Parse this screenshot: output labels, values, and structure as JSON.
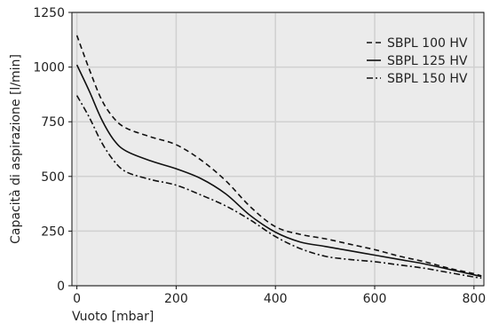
{
  "chart_data": {
    "type": "line",
    "xlabel": "Vuoto [mbar]",
    "ylabel": "Capacità di aspirazione [l/min]",
    "xlim": [
      -10,
      820
    ],
    "ylim": [
      0,
      1250
    ],
    "xticks": [
      0,
      200,
      400,
      600,
      800
    ],
    "yticks": [
      0,
      250,
      500,
      750,
      1000,
      1250
    ],
    "grid": true,
    "legend_position": "top-right",
    "colors": {
      "plot_background": "#ebebeb",
      "grid": "#d0d0d0",
      "line": "#111111"
    },
    "series": [
      {
        "name": "SBPL 100 HV",
        "dash": "dashed",
        "x": [
          0,
          25,
          50,
          75,
          100,
          150,
          200,
          250,
          300,
          350,
          400,
          450,
          500,
          550,
          600,
          650,
          700,
          750,
          800,
          815
        ],
        "y": [
          1145,
          990,
          850,
          765,
          720,
          680,
          645,
          575,
          480,
          360,
          270,
          235,
          215,
          190,
          165,
          135,
          110,
          80,
          55,
          45
        ]
      },
      {
        "name": "SBPL 125 HV",
        "dash": "solid",
        "x": [
          0,
          25,
          50,
          75,
          100,
          150,
          200,
          250,
          300,
          350,
          400,
          450,
          500,
          550,
          600,
          650,
          700,
          750,
          800,
          815
        ],
        "y": [
          1010,
          890,
          760,
          665,
          615,
          570,
          535,
          490,
          420,
          320,
          245,
          200,
          180,
          160,
          140,
          120,
          100,
          75,
          50,
          42
        ]
      },
      {
        "name": "SBPL 150 HV",
        "dash": "dashdot",
        "x": [
          0,
          25,
          50,
          75,
          100,
          150,
          200,
          250,
          300,
          350,
          400,
          450,
          500,
          550,
          600,
          650,
          700,
          750,
          800,
          815
        ],
        "y": [
          870,
          770,
          655,
          570,
          520,
          485,
          460,
          415,
          365,
          300,
          225,
          170,
          135,
          120,
          110,
          95,
          80,
          60,
          40,
          35
        ]
      }
    ]
  }
}
